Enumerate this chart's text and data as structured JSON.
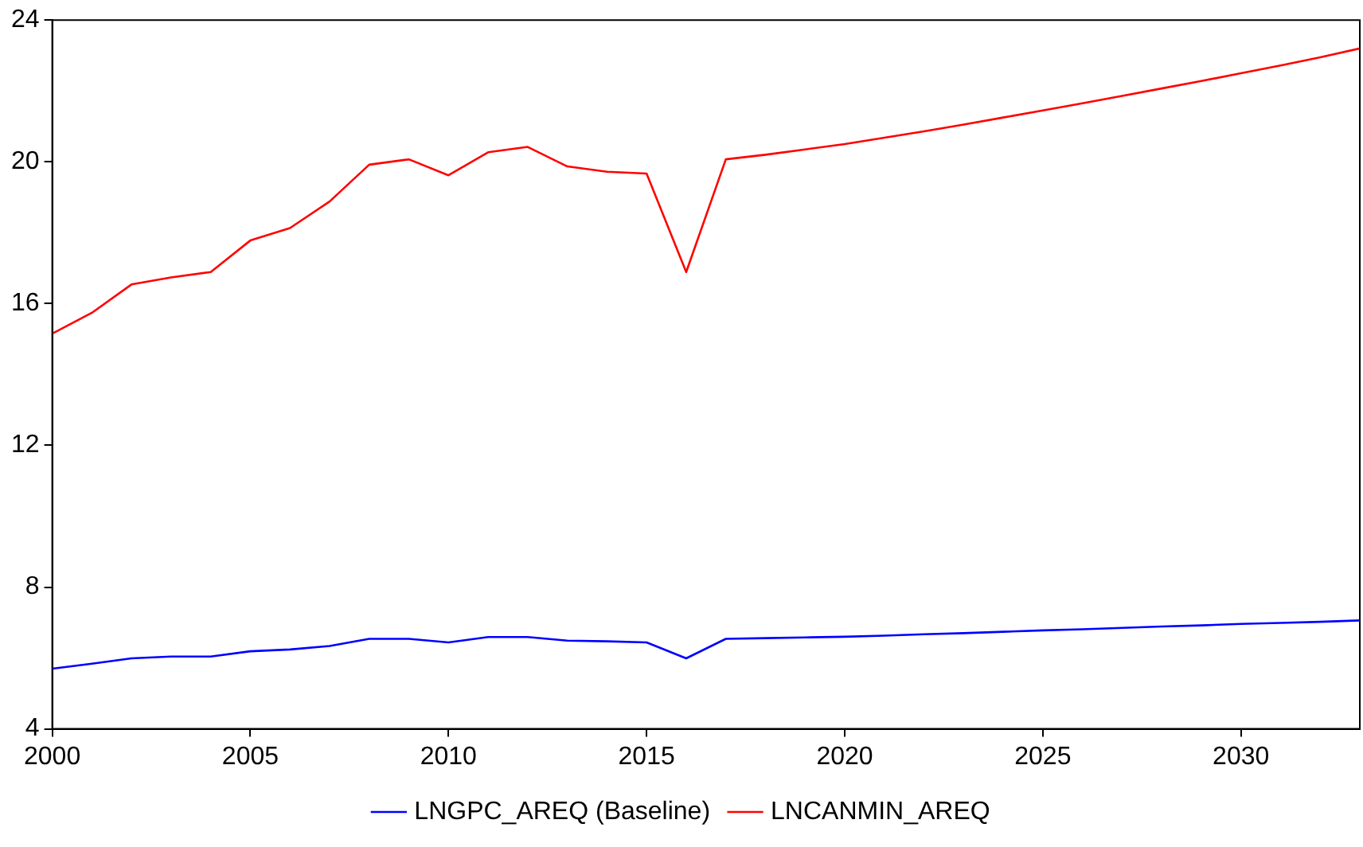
{
  "chart_data": {
    "type": "line",
    "x": [
      2000,
      2001,
      2002,
      2003,
      2004,
      2005,
      2006,
      2007,
      2008,
      2009,
      2010,
      2011,
      2012,
      2013,
      2014,
      2015,
      2016,
      2017,
      2018,
      2019,
      2020,
      2021,
      2022,
      2023,
      2024,
      2025,
      2026,
      2027,
      2028,
      2029,
      2030,
      2031,
      2032,
      2033
    ],
    "series": [
      {
        "name": "LNGPC_AREQ (Baseline)",
        "color": "#0000ff",
        "values": [
          5.7,
          5.84,
          5.99,
          6.04,
          6.04,
          6.19,
          6.24,
          6.34,
          6.54,
          6.54,
          6.44,
          6.59,
          6.59,
          6.49,
          6.47,
          6.44,
          5.99,
          6.54,
          6.56,
          6.58,
          6.6,
          6.63,
          6.67,
          6.7,
          6.74,
          6.78,
          6.81,
          6.85,
          6.89,
          6.92,
          6.96,
          6.99,
          7.02,
          7.06
        ]
      },
      {
        "name": "LNCANMIN_AREQ",
        "color": "#ff0000",
        "values": [
          15.15,
          15.74,
          16.54,
          16.74,
          16.89,
          17.78,
          18.13,
          18.88,
          19.92,
          20.07,
          19.62,
          20.27,
          20.42,
          19.87,
          19.72,
          19.67,
          16.89,
          20.07,
          20.2,
          20.35,
          20.5,
          20.68,
          20.86,
          21.05,
          21.25,
          21.45,
          21.65,
          21.86,
          22.07,
          22.28,
          22.5,
          22.72,
          22.95,
          23.2
        ]
      }
    ],
    "xlim": [
      2000,
      2033
    ],
    "xticks": [
      2000,
      2005,
      2010,
      2015,
      2020,
      2025,
      2030
    ],
    "ylim": [
      4,
      24
    ],
    "yticks": [
      4,
      8,
      12,
      16,
      20,
      24
    ],
    "grid": false,
    "legend": "bottom",
    "marker": "none",
    "line_style": "solid"
  }
}
